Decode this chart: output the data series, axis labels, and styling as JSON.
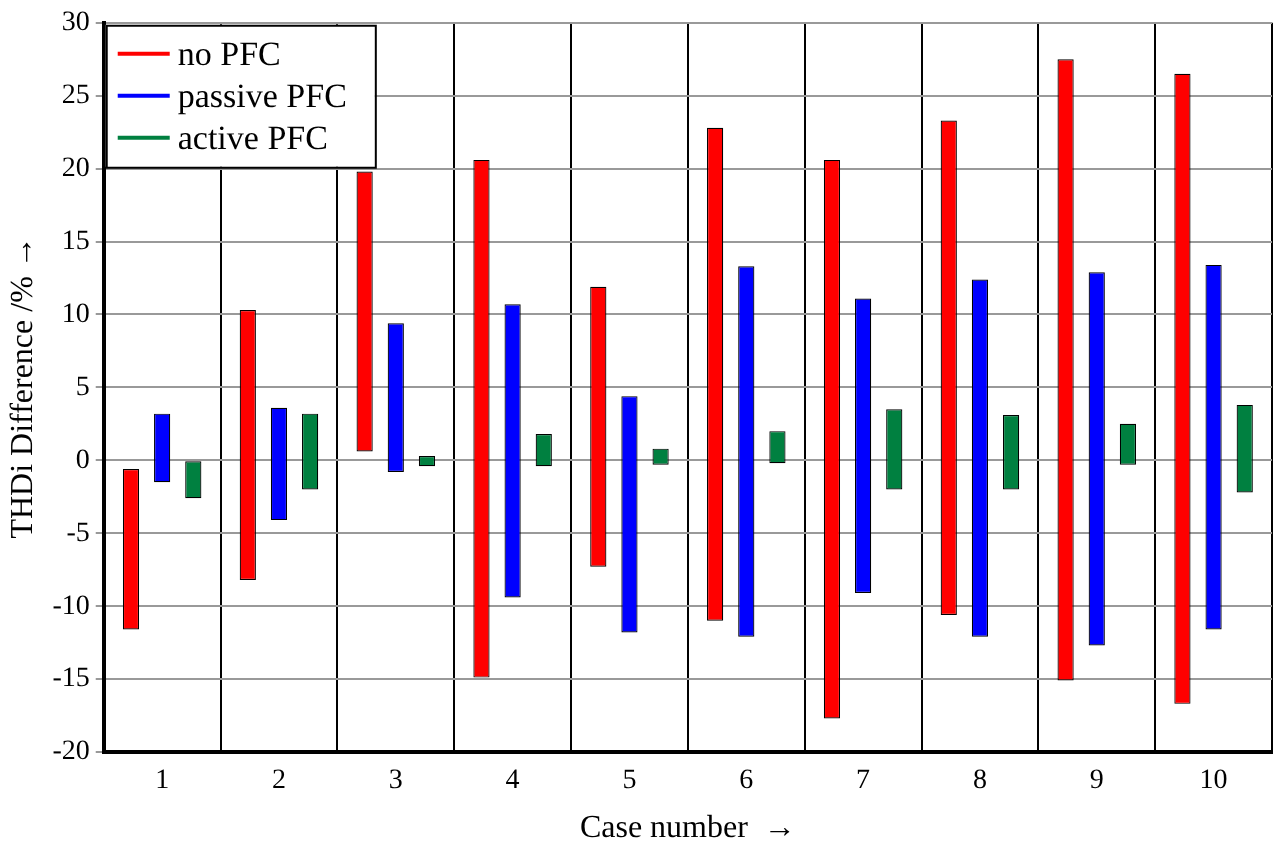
{
  "chart_data": {
    "type": "bar",
    "xlabel": "Case number  →",
    "ylabel": "THDi Difference /% →",
    "categories": [
      "1",
      "2",
      "3",
      "4",
      "5",
      "6",
      "7",
      "8",
      "9",
      "10"
    ],
    "series": [
      {
        "name": "no PFC",
        "color": "#ff0000",
        "base": [
          -11.6,
          -8.2,
          0.6,
          -14.9,
          -7.3,
          -11.0,
          -17.7,
          -10.6,
          -15.1,
          -16.7
        ],
        "values": [
          11.0,
          18.5,
          19.2,
          35.5,
          19.2,
          33.8,
          38.3,
          33.9,
          42.6,
          43.2
        ]
      },
      {
        "name": "passive PFC",
        "color": "#0000ff",
        "base": [
          -1.5,
          -4.1,
          -0.8,
          -9.4,
          -11.8,
          -12.1,
          -9.1,
          -12.1,
          -12.7,
          -11.6
        ],
        "values": [
          4.7,
          7.7,
          10.2,
          20.1,
          16.2,
          25.4,
          20.2,
          24.5,
          25.6,
          25.0
        ]
      },
      {
        "name": "active PFC",
        "color": "#008040",
        "base": [
          -2.6,
          -2.0,
          -0.4,
          -0.4,
          -0.3,
          -0.2,
          -2.0,
          -2.0,
          -0.3,
          -2.2
        ],
        "values": [
          2.6,
          5.2,
          0.7,
          2.2,
          1.1,
          2.2,
          5.5,
          5.1,
          2.8,
          6.0
        ]
      }
    ],
    "ylim": [
      -20,
      30
    ],
    "yticks": [
      -20,
      -15,
      -10,
      -5,
      0,
      5,
      10,
      15,
      20,
      25,
      30
    ],
    "grid": true,
    "legend": "top left"
  }
}
